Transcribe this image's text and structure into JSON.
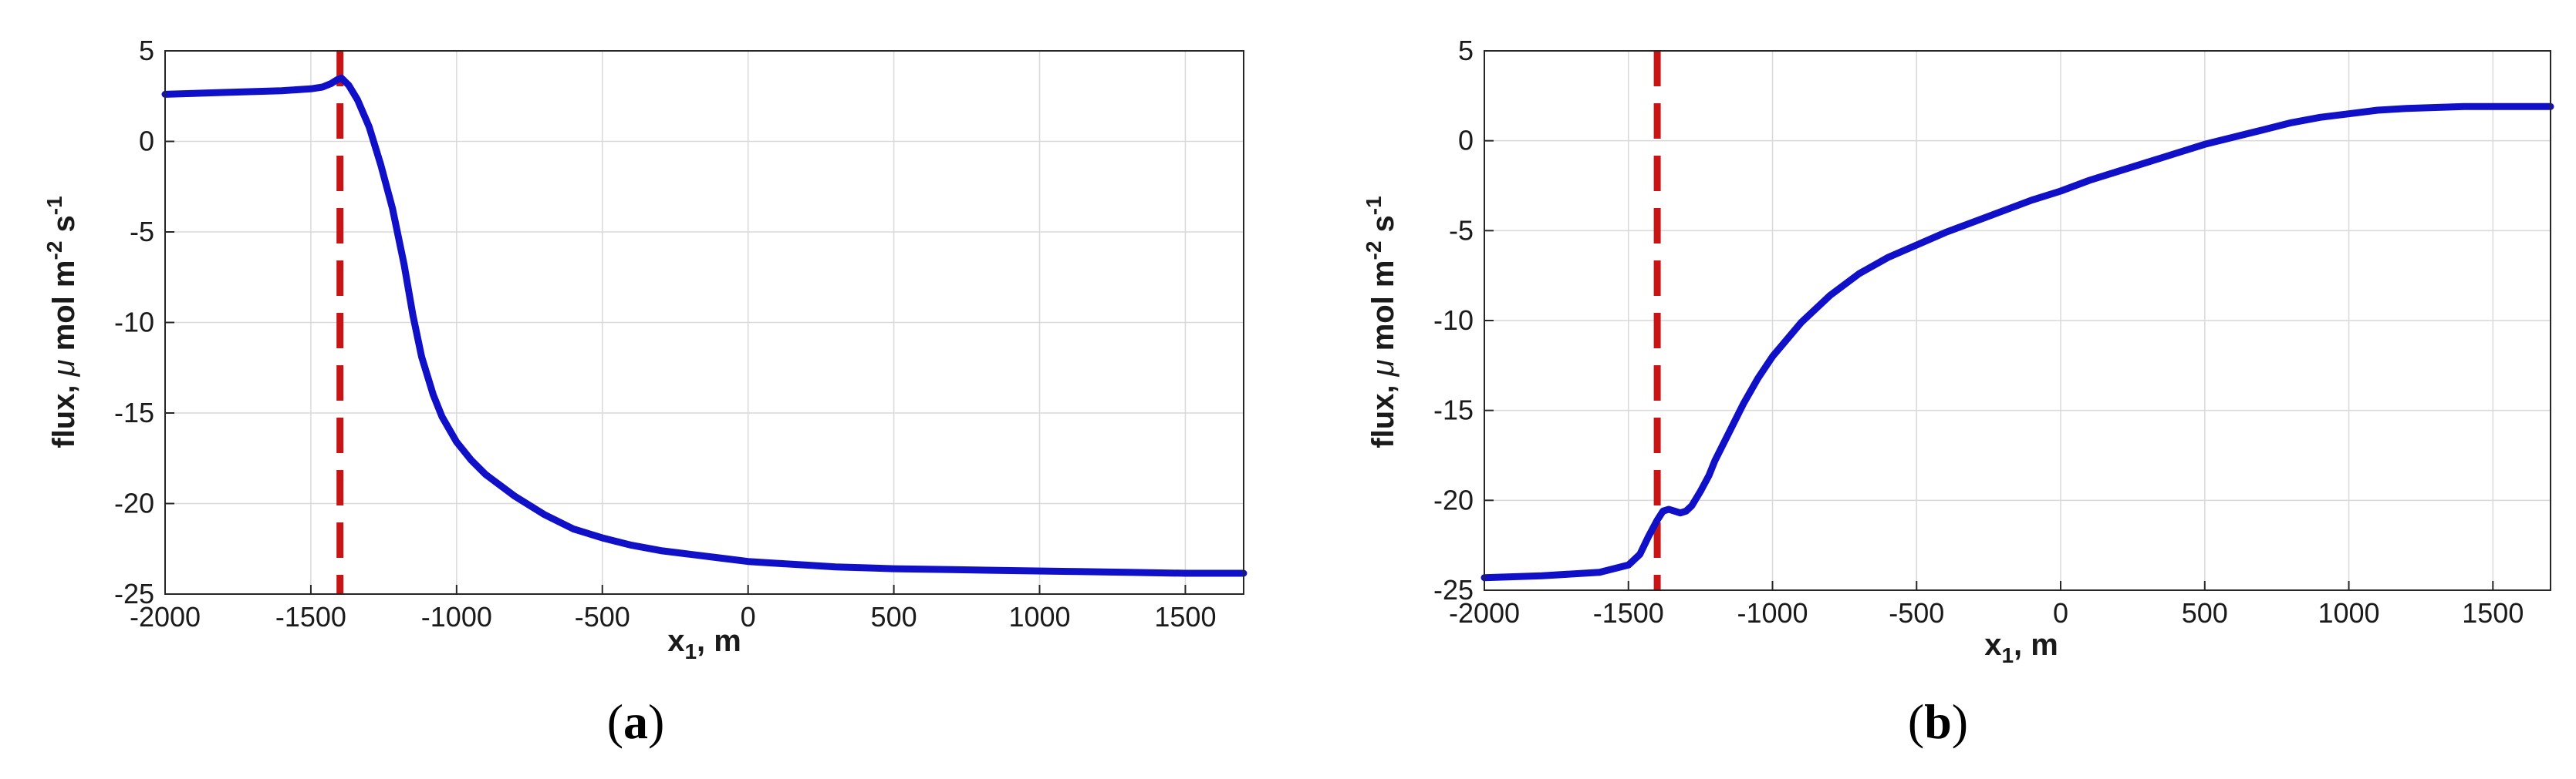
{
  "colors": {
    "curve": "#1010c8",
    "marker": "#c81414",
    "grid": "#d9d9d9",
    "axis": "#262626"
  },
  "chart_data": [
    {
      "type": "line",
      "panel_label": {
        "open": "(",
        "letter": "a",
        "close": ")"
      },
      "xlabel": {
        "main": "x",
        "sub": "1",
        "tail": ", m"
      },
      "ylabel": {
        "prefix": "flux, ",
        "mu": "μ",
        "mid": " mol m",
        "sup1": "-2",
        "mid2": " s",
        "sup2": "-1"
      },
      "xlim": [
        -2000,
        1700
      ],
      "ylim": [
        -25,
        5
      ],
      "xticks": [
        -2000,
        -1500,
        -1000,
        -500,
        0,
        500,
        1000,
        1500
      ],
      "yticks": [
        5,
        0,
        -5,
        -10,
        -15,
        -20,
        -25
      ],
      "grid": true,
      "vline_x": -1400,
      "series": [
        {
          "x": [
            -2000,
            -1800,
            -1600,
            -1500,
            -1460,
            -1430,
            -1410,
            -1395,
            -1370,
            -1340,
            -1300,
            -1260,
            -1220,
            -1180,
            -1150,
            -1120,
            -1080,
            -1050,
            -1000,
            -950,
            -900,
            -850,
            -800,
            -700,
            -600,
            -500,
            -400,
            -300,
            -200,
            -100,
            0,
            100,
            200,
            300,
            400,
            500,
            700,
            900,
            1100,
            1300,
            1500,
            1700
          ],
          "y": [
            2.6,
            2.7,
            2.8,
            2.9,
            3.0,
            3.2,
            3.4,
            3.5,
            3.1,
            2.3,
            0.8,
            -1.3,
            -3.7,
            -6.8,
            -9.6,
            -11.9,
            -14.0,
            -15.2,
            -16.6,
            -17.6,
            -18.4,
            -19.0,
            -19.6,
            -20.6,
            -21.4,
            -21.9,
            -22.3,
            -22.6,
            -22.8,
            -23.0,
            -23.2,
            -23.3,
            -23.4,
            -23.5,
            -23.55,
            -23.6,
            -23.65,
            -23.7,
            -23.75,
            -23.8,
            -23.85,
            -23.85
          ]
        }
      ]
    },
    {
      "type": "line",
      "panel_label": {
        "open": "(",
        "letter": "b",
        "close": ")"
      },
      "xlabel": {
        "main": "x",
        "sub": "1",
        "tail": ", m"
      },
      "ylabel": {
        "prefix": "flux, ",
        "mu": "μ",
        "mid": " mol m",
        "sup1": "-2",
        "mid2": " s",
        "sup2": "-1"
      },
      "xlim": [
        -2000,
        1700
      ],
      "ylim": [
        -25,
        5
      ],
      "xticks": [
        -2000,
        -1500,
        -1000,
        -500,
        0,
        500,
        1000,
        1500
      ],
      "yticks": [
        5,
        0,
        -5,
        -10,
        -15,
        -20,
        -25
      ],
      "grid": true,
      "vline_x": -1400,
      "series": [
        {
          "x": [
            -2000,
            -1800,
            -1600,
            -1500,
            -1460,
            -1430,
            -1400,
            -1380,
            -1360,
            -1340,
            -1320,
            -1300,
            -1280,
            -1250,
            -1220,
            -1200,
            -1150,
            -1100,
            -1050,
            -1000,
            -900,
            -800,
            -700,
            -600,
            -500,
            -400,
            -300,
            -200,
            -100,
            0,
            100,
            200,
            300,
            400,
            500,
            600,
            700,
            800,
            900,
            1000,
            1100,
            1200,
            1300,
            1400,
            1500,
            1600,
            1700
          ],
          "y": [
            -24.3,
            -24.2,
            -24.0,
            -23.6,
            -23.0,
            -22.0,
            -21.1,
            -20.6,
            -20.5,
            -20.6,
            -20.7,
            -20.6,
            -20.3,
            -19.5,
            -18.6,
            -17.8,
            -16.2,
            -14.6,
            -13.2,
            -12.0,
            -10.1,
            -8.6,
            -7.4,
            -6.5,
            -5.8,
            -5.1,
            -4.5,
            -3.9,
            -3.3,
            -2.8,
            -2.2,
            -1.7,
            -1.2,
            -0.7,
            -0.2,
            0.2,
            0.6,
            1.0,
            1.3,
            1.5,
            1.7,
            1.8,
            1.85,
            1.9,
            1.9,
            1.9,
            1.9
          ]
        }
      ]
    }
  ]
}
